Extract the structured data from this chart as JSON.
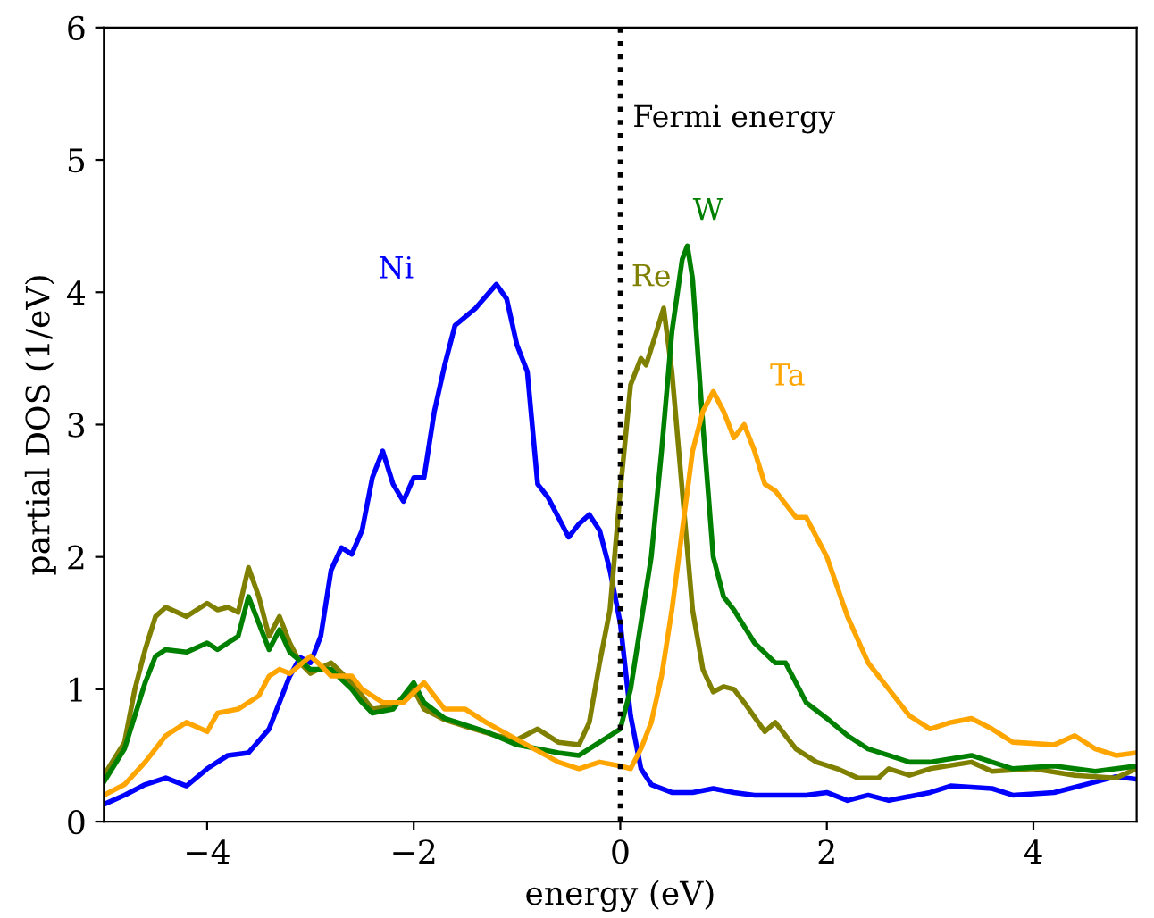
{
  "chart_data": {
    "type": "line",
    "xlabel": "energy (eV)",
    "ylabel": "partial DOS (1/eV)",
    "xlim": [
      -5,
      5
    ],
    "ylim": [
      0,
      6
    ],
    "xticks": [
      {
        "value": -4,
        "label": "−4"
      },
      {
        "value": -2,
        "label": "−2"
      },
      0,
      2,
      4
    ],
    "yticks": [
      0,
      1,
      2,
      3,
      4,
      5,
      6
    ],
    "grid": false,
    "legend": false,
    "marker": "none",
    "line_style": "solid",
    "ref_lines": [
      {
        "axis": "x",
        "value": 0,
        "label": "Fermi energy",
        "color": "#000000",
        "line_style": "dotted"
      }
    ],
    "series": [
      {
        "name": "Ni",
        "color": "#0000ff",
        "x": [
          -5,
          -4.8,
          -4.6,
          -4.4,
          -4.2,
          -4.0,
          -3.8,
          -3.6,
          -3.4,
          -3.2,
          -3.1,
          -3.0,
          -2.9,
          -2.8,
          -2.7,
          -2.6,
          -2.5,
          -2.4,
          -2.3,
          -2.2,
          -2.1,
          -2.0,
          -1.9,
          -1.8,
          -1.7,
          -1.6,
          -1.4,
          -1.2,
          -1.1,
          -1.0,
          -0.9,
          -0.8,
          -0.7,
          -0.6,
          -0.5,
          -0.4,
          -0.3,
          -0.2,
          -0.1,
          0,
          0.1,
          0.2,
          0.3,
          0.5,
          0.7,
          0.9,
          1.1,
          1.3,
          1.6,
          1.8,
          2.0,
          2.2,
          2.4,
          2.6,
          3.0,
          3.2,
          3.6,
          3.8,
          4.2,
          4.6,
          4.8,
          5.0
        ],
        "values": [
          0.13,
          0.2,
          0.28,
          0.33,
          0.27,
          0.4,
          0.5,
          0.52,
          0.7,
          1.1,
          1.24,
          1.2,
          1.4,
          1.9,
          2.07,
          2.02,
          2.2,
          2.6,
          2.8,
          2.55,
          2.42,
          2.6,
          2.6,
          3.1,
          3.45,
          3.75,
          3.88,
          4.06,
          3.95,
          3.6,
          3.4,
          2.55,
          2.45,
          2.3,
          2.15,
          2.25,
          2.32,
          2.2,
          1.9,
          1.5,
          0.8,
          0.4,
          0.28,
          0.22,
          0.22,
          0.25,
          0.22,
          0.2,
          0.2,
          0.2,
          0.22,
          0.16,
          0.2,
          0.16,
          0.22,
          0.27,
          0.25,
          0.2,
          0.22,
          0.3,
          0.34,
          0.32
        ]
      },
      {
        "name": "Re",
        "color": "#808000",
        "x": [
          -5,
          -4.8,
          -4.7,
          -4.6,
          -4.5,
          -4.4,
          -4.2,
          -4.0,
          -3.9,
          -3.8,
          -3.7,
          -3.6,
          -3.5,
          -3.4,
          -3.3,
          -3.2,
          -3.1,
          -3.0,
          -2.8,
          -2.6,
          -2.5,
          -2.4,
          -2.2,
          -2.0,
          -1.9,
          -1.7,
          -1.5,
          -1.2,
          -1.0,
          -0.8,
          -0.6,
          -0.4,
          -0.3,
          -0.2,
          -0.1,
          0,
          0.1,
          0.2,
          0.25,
          0.35,
          0.42,
          0.5,
          0.6,
          0.7,
          0.8,
          0.9,
          1.0,
          1.1,
          1.2,
          1.4,
          1.5,
          1.7,
          1.9,
          2.1,
          2.3,
          2.5,
          2.6,
          2.8,
          3.0,
          3.4,
          3.6,
          4.0,
          4.4,
          4.8,
          5.0
        ],
        "values": [
          0.35,
          0.6,
          1.0,
          1.3,
          1.55,
          1.62,
          1.55,
          1.65,
          1.6,
          1.62,
          1.58,
          1.92,
          1.7,
          1.4,
          1.55,
          1.35,
          1.2,
          1.12,
          1.2,
          1.05,
          0.95,
          0.85,
          0.87,
          1.0,
          0.85,
          0.77,
          0.72,
          0.65,
          0.62,
          0.7,
          0.6,
          0.58,
          0.75,
          1.2,
          1.6,
          2.5,
          3.3,
          3.5,
          3.45,
          3.7,
          3.88,
          3.4,
          2.5,
          1.6,
          1.15,
          0.98,
          1.02,
          1.0,
          0.9,
          0.68,
          0.75,
          0.55,
          0.45,
          0.4,
          0.33,
          0.33,
          0.4,
          0.35,
          0.4,
          0.45,
          0.38,
          0.4,
          0.35,
          0.33,
          0.4
        ]
      },
      {
        "name": "W",
        "color": "#008000",
        "x": [
          -5,
          -4.8,
          -4.6,
          -4.5,
          -4.4,
          -4.2,
          -4.0,
          -3.9,
          -3.8,
          -3.7,
          -3.6,
          -3.5,
          -3.4,
          -3.3,
          -3.2,
          -3.0,
          -2.8,
          -2.6,
          -2.5,
          -2.4,
          -2.2,
          -2.0,
          -1.9,
          -1.7,
          -1.5,
          -1.3,
          -1.0,
          -0.6,
          -0.4,
          -0.2,
          -0.1,
          0,
          0.1,
          0.2,
          0.3,
          0.4,
          0.5,
          0.6,
          0.65,
          0.7,
          0.8,
          0.9,
          1.0,
          1.1,
          1.3,
          1.5,
          1.6,
          1.8,
          2.0,
          2.2,
          2.4,
          2.6,
          2.8,
          3.0,
          3.4,
          3.6,
          3.8,
          4.2,
          4.6,
          5.0
        ],
        "values": [
          0.3,
          0.55,
          1.05,
          1.25,
          1.3,
          1.28,
          1.35,
          1.3,
          1.35,
          1.4,
          1.7,
          1.5,
          1.3,
          1.45,
          1.28,
          1.15,
          1.15,
          1.0,
          0.9,
          0.82,
          0.85,
          1.05,
          0.9,
          0.78,
          0.73,
          0.68,
          0.58,
          0.52,
          0.5,
          0.6,
          0.65,
          0.7,
          1.0,
          1.5,
          2.0,
          2.8,
          3.7,
          4.25,
          4.35,
          4.1,
          3.0,
          2.0,
          1.7,
          1.6,
          1.35,
          1.2,
          1.2,
          0.9,
          0.78,
          0.65,
          0.55,
          0.5,
          0.45,
          0.45,
          0.5,
          0.45,
          0.4,
          0.42,
          0.38,
          0.42
        ]
      },
      {
        "name": "Ta",
        "color": "#ffa500",
        "x": [
          -5,
          -4.8,
          -4.6,
          -4.4,
          -4.2,
          -4.0,
          -3.9,
          -3.7,
          -3.5,
          -3.4,
          -3.3,
          -3.2,
          -3.0,
          -2.9,
          -2.8,
          -2.6,
          -2.5,
          -2.3,
          -2.1,
          -1.9,
          -1.7,
          -1.5,
          -1.3,
          -1.0,
          -0.6,
          -0.4,
          -0.2,
          0,
          0.1,
          0.2,
          0.3,
          0.4,
          0.5,
          0.6,
          0.7,
          0.8,
          0.9,
          1.0,
          1.1,
          1.2,
          1.3,
          1.4,
          1.5,
          1.6,
          1.7,
          1.8,
          2.0,
          2.2,
          2.4,
          2.6,
          2.8,
          3.0,
          3.2,
          3.4,
          3.6,
          3.8,
          4.2,
          4.4,
          4.6,
          4.8,
          5.0
        ],
        "values": [
          0.2,
          0.28,
          0.45,
          0.65,
          0.75,
          0.68,
          0.82,
          0.85,
          0.95,
          1.1,
          1.15,
          1.12,
          1.25,
          1.18,
          1.1,
          1.1,
          1.0,
          0.9,
          0.9,
          1.05,
          0.85,
          0.85,
          0.75,
          0.62,
          0.45,
          0.4,
          0.45,
          0.42,
          0.4,
          0.55,
          0.75,
          1.1,
          1.6,
          2.2,
          2.8,
          3.1,
          3.25,
          3.1,
          2.9,
          3.0,
          2.8,
          2.55,
          2.5,
          2.4,
          2.3,
          2.3,
          2.0,
          1.55,
          1.2,
          1.0,
          0.8,
          0.7,
          0.75,
          0.78,
          0.7,
          0.6,
          0.58,
          0.65,
          0.55,
          0.5,
          0.52
        ]
      }
    ]
  }
}
